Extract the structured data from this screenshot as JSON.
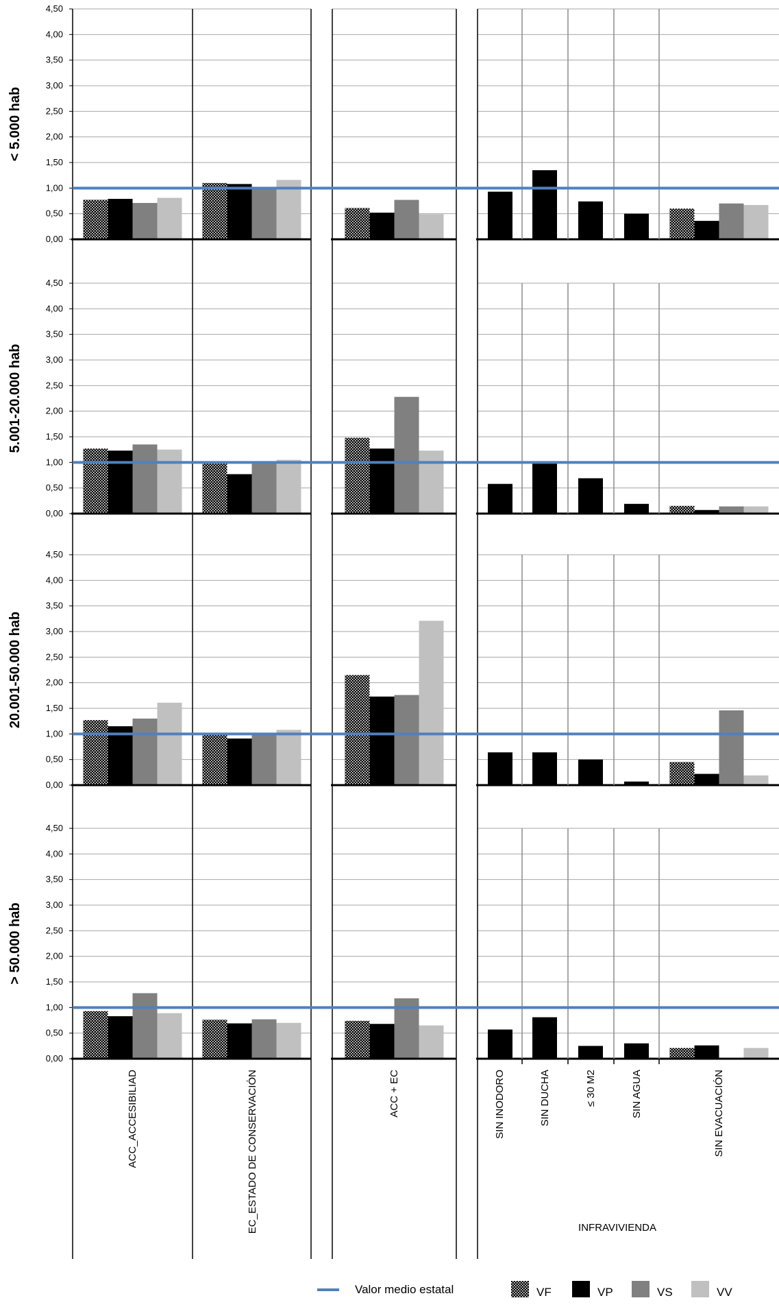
{
  "chart_data": {
    "type": "bar",
    "ylim": [
      0,
      4.5
    ],
    "ytick_labels": [
      "0,00",
      "0,50",
      "1,00",
      "1,50",
      "2,00",
      "2,50",
      "3,00",
      "3,50",
      "4,00",
      "4,50"
    ],
    "reference_line": {
      "name": "Valor medio estatal",
      "value": 1.0,
      "color": "#4f81bd"
    },
    "series": [
      {
        "name": "VF",
        "pattern": "dots",
        "color": "#000000"
      },
      {
        "name": "VP",
        "pattern": "solid",
        "color": "#000000"
      },
      {
        "name": "VS",
        "pattern": "solid",
        "color": "#808080"
      },
      {
        "name": "VV",
        "pattern": "solid",
        "color": "#c0c0c0"
      }
    ],
    "categories": [
      "ACC_ACCESIBILIAD",
      "EC_ESTADO DE CONSERVACIÓN",
      "ACC + EC",
      "SIN INODORO",
      "SIN DUCHA",
      "≤ 30 M2",
      "SIN AGUA",
      "SIN EVACUACIÓN"
    ],
    "group_label": "INFRAVIVIENDA",
    "panels": [
      {
        "row_label": "< 5.000 hab",
        "values": {
          "ACC_ACCESIBILIAD": [
            0.77,
            0.79,
            0.71,
            0.81
          ],
          "EC_ESTADO DE CONSERVACIÓN": [
            1.1,
            1.08,
            1.0,
            1.16
          ],
          "ACC + EC": [
            0.61,
            0.52,
            0.77,
            0.49
          ],
          "SIN INODORO": [
            0.93
          ],
          "SIN DUCHA": [
            1.35
          ],
          "≤ 30 M2": [
            0.74
          ],
          "SIN AGUA": [
            0.5
          ],
          "SIN EVACUACIÓN": [
            0.6,
            0.36,
            0.7,
            0.67
          ]
        }
      },
      {
        "row_label": "5.001-20.000 hab",
        "values": {
          "ACC_ACCESIBILIAD": [
            1.27,
            1.23,
            1.35,
            1.25
          ],
          "EC_ESTADO DE CONSERVACIÓN": [
            1.0,
            0.77,
            1.0,
            1.05
          ],
          "ACC + EC": [
            1.48,
            1.27,
            2.28,
            1.23
          ],
          "SIN INODORO": [
            0.58
          ],
          "SIN DUCHA": [
            0.98
          ],
          "≤ 30 M2": [
            0.69
          ],
          "SIN AGUA": [
            0.19
          ],
          "SIN EVACUACIÓN": [
            0.15,
            0.07,
            0.14,
            0.14
          ]
        }
      },
      {
        "row_label": "20.001-50.000 hab",
        "values": {
          "ACC_ACCESIBILIAD": [
            1.27,
            1.15,
            1.3,
            1.61
          ],
          "EC_ESTADO DE CONSERVACIÓN": [
            1.0,
            0.91,
            1.0,
            1.08
          ],
          "ACC + EC": [
            2.15,
            1.73,
            1.76,
            3.21
          ],
          "SIN INODORO": [
            0.64
          ],
          "SIN DUCHA": [
            0.64
          ],
          "≤ 30 M2": [
            0.5
          ],
          "SIN AGUA": [
            0.07
          ],
          "SIN EVACUACIÓN": [
            0.45,
            0.22,
            1.46,
            0.19
          ]
        }
      },
      {
        "row_label": "> 50.000 hab",
        "values": {
          "ACC_ACCESIBILIAD": [
            0.93,
            0.83,
            1.28,
            0.89
          ],
          "EC_ESTADO DE CONSERVACIÓN": [
            0.76,
            0.69,
            0.77,
            0.7
          ],
          "ACC + EC": [
            0.74,
            0.68,
            1.18,
            0.65
          ],
          "SIN INODORO": [
            0.57
          ],
          "SIN DUCHA": [
            0.81
          ],
          "≤ 30 M2": [
            0.25
          ],
          "SIN AGUA": [
            0.3
          ],
          "SIN EVACUACIÓN": [
            0.21,
            0.26,
            0.0,
            0.21
          ]
        }
      }
    ],
    "legend": {
      "position": "bottom-right"
    },
    "grid": true
  }
}
